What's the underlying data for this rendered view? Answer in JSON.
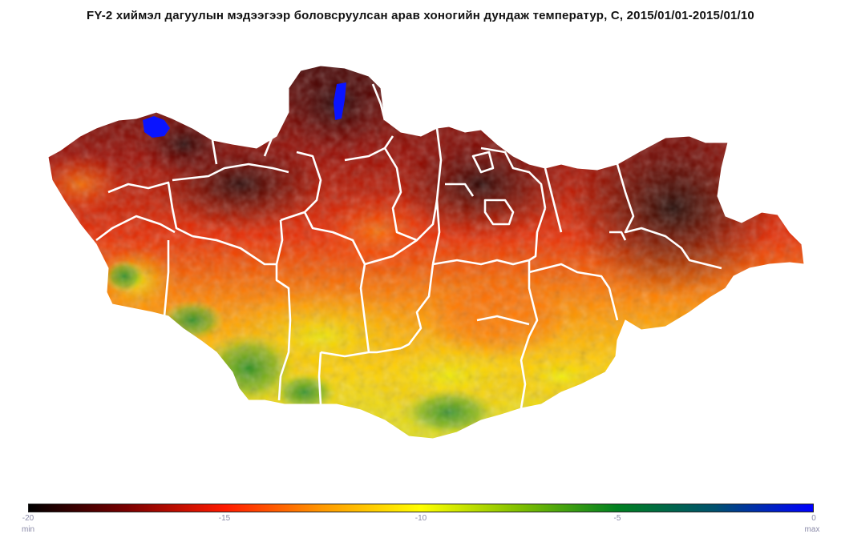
{
  "title": "FY-2 хиймэл дагуулын мэдээгээр боловсруулсан арав хоногийн  дундаж температур, C, 2015/01/01-2015/01/10",
  "colorbar": {
    "min": -20,
    "max": 0,
    "ticks": [
      "-20",
      "-15",
      "-10",
      "-5",
      "0"
    ],
    "min_label": "min",
    "max_label": "max",
    "stops": [
      {
        "value": -20,
        "color": "#000000"
      },
      {
        "value": -17.5,
        "color": "#7a0000"
      },
      {
        "value": -15,
        "color": "#ff1a00"
      },
      {
        "value": -12.5,
        "color": "#ff9900"
      },
      {
        "value": -10,
        "color": "#ffff00"
      },
      {
        "value": -7.5,
        "color": "#80c000"
      },
      {
        "value": -5,
        "color": "#008020"
      },
      {
        "value": -2.5,
        "color": "#00506e"
      },
      {
        "value": 0,
        "color": "#0000ff"
      }
    ]
  },
  "colors": {
    "boundary": "#ffffff",
    "lake": "#0a14ff"
  }
}
